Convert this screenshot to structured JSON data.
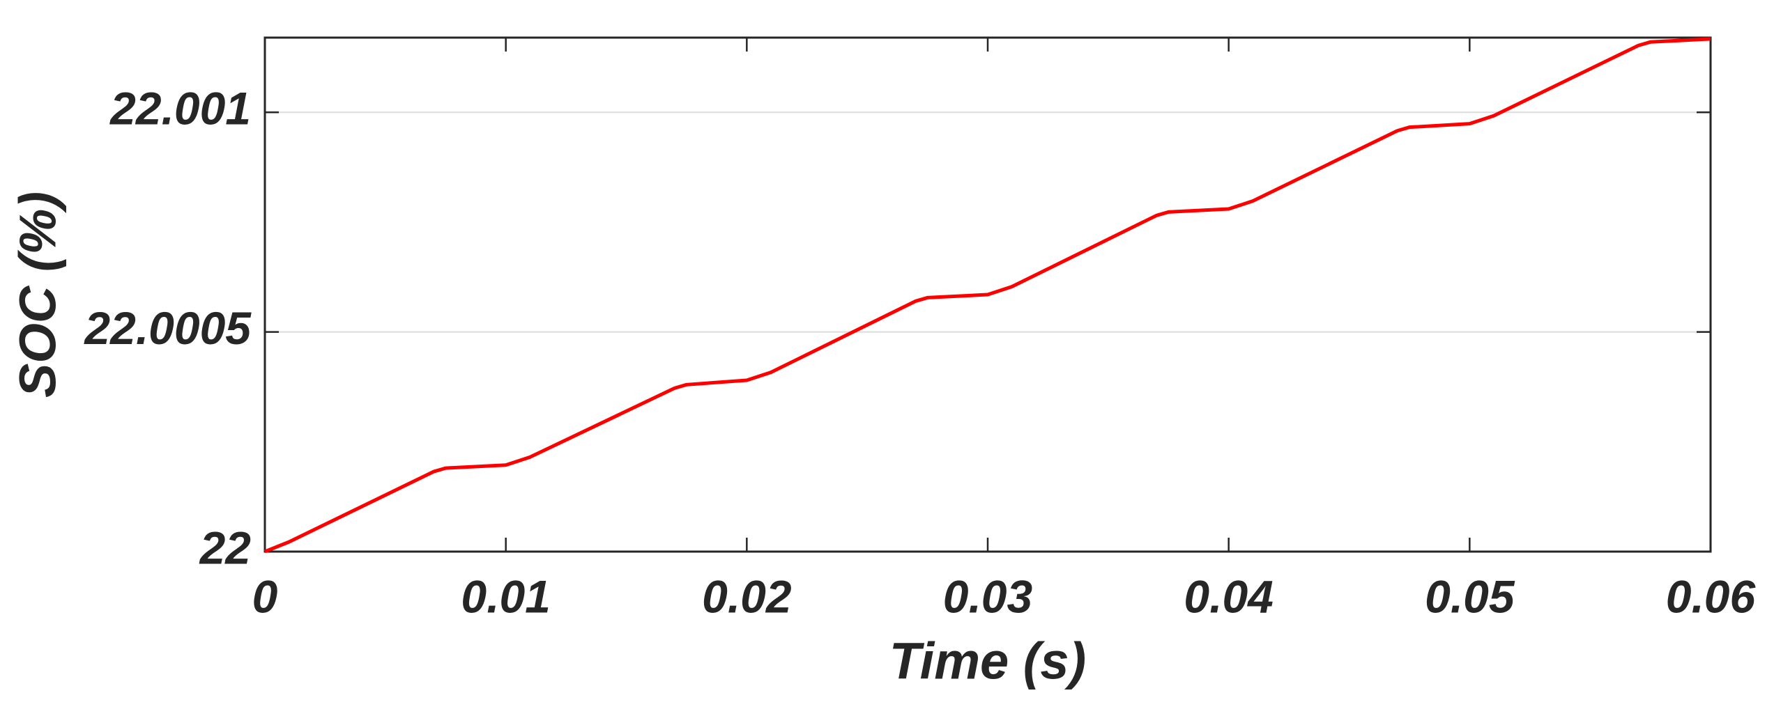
{
  "chart_data": {
    "type": "line",
    "x_label": "Time (s)",
    "y_label": "SOC (%)",
    "x": [
      0,
      0.001,
      0.007,
      0.0075,
      0.01,
      0.011,
      0.017,
      0.0175,
      0.02,
      0.021,
      0.027,
      0.0275,
      0.03,
      0.031,
      0.037,
      0.0375,
      0.04,
      0.041,
      0.047,
      0.0475,
      0.05,
      0.051,
      0.057,
      0.0575,
      0.06
    ],
    "series": [
      {
        "color": "#ff0000",
        "values": [
          22,
          22.000022,
          22.000182,
          22.00019,
          22.000197,
          22.000215,
          22.000372,
          22.00038,
          22.00039,
          22.000408,
          22.00057,
          22.000578,
          22.000585,
          22.000603,
          22.000765,
          22.000773,
          22.00078,
          22.000798,
          22.000958,
          22.000966,
          22.000974,
          22.000992,
          22.001152,
          22.00116,
          22.001167
        ]
      }
    ],
    "xlim": [
      0,
      0.06
    ],
    "xticks": [
      0,
      0.01,
      0.02,
      0.03,
      0.04,
      0.05,
      0.06
    ],
    "ylim": [
      22,
      22.00117
    ],
    "yticks": [
      22,
      22.0005,
      22.001
    ],
    "grid": true
  }
}
